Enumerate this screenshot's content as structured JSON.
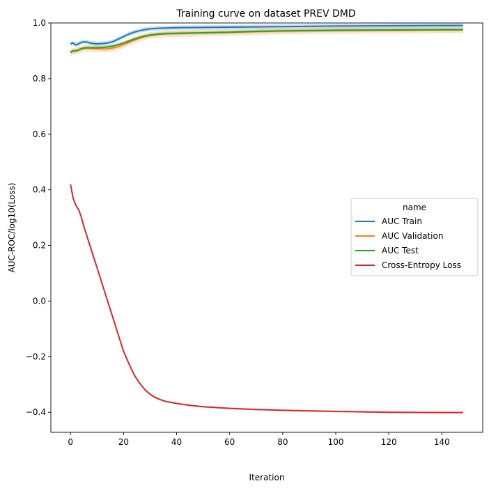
{
  "chart_data": {
    "type": "line",
    "title": "Training curve on dataset PREV DMD",
    "xlabel": "Iteration",
    "ylabel": "AUC-ROC/log10(Loss)",
    "xlim": [
      -7.4,
      155.4
    ],
    "ylim": [
      -0.472,
      1.0
    ],
    "xticks": [
      0,
      20,
      40,
      60,
      80,
      100,
      120,
      140
    ],
    "xtick_labels": [
      "0",
      "20",
      "40",
      "60",
      "80",
      "100",
      "120",
      "140"
    ],
    "yticks": [
      -0.4,
      -0.2,
      0.0,
      0.2,
      0.4,
      0.6,
      0.8,
      1.0
    ],
    "ytick_labels": [
      "−0.4",
      "−0.2",
      "0.0",
      "0.2",
      "0.4",
      "0.6",
      "0.8",
      "1.0"
    ],
    "grid": false,
    "legend": {
      "title": "name",
      "placement": "center-right",
      "entries": [
        "AUC Train",
        "AUC Validation",
        "AUC Test",
        "Cross-Entropy Loss"
      ]
    },
    "series": [
      {
        "name": "AUC Train",
        "color": "#1f77b4",
        "x": [
          0,
          1,
          2,
          3,
          4,
          5,
          6,
          7,
          8,
          10,
          12,
          14,
          16,
          18,
          20,
          22,
          24,
          26,
          28,
          30,
          33,
          36,
          40,
          50,
          60,
          80,
          100,
          120,
          140,
          148
        ],
        "y": [
          0.925,
          0.928,
          0.921,
          0.925,
          0.93,
          0.932,
          0.932,
          0.929,
          0.927,
          0.925,
          0.926,
          0.928,
          0.933,
          0.942,
          0.951,
          0.96,
          0.967,
          0.972,
          0.976,
          0.979,
          0.981,
          0.982,
          0.983,
          0.984,
          0.985,
          0.987,
          0.989,
          0.99,
          0.991,
          0.991
        ],
        "band": 0.008
      },
      {
        "name": "AUC Validation",
        "color": "#ff7f0e",
        "x": [
          0,
          1,
          2,
          3,
          4,
          5,
          6,
          8,
          10,
          12,
          14,
          16,
          18,
          20,
          22,
          24,
          26,
          28,
          30,
          33,
          36,
          40,
          50,
          60,
          70,
          80,
          100,
          120,
          140,
          148
        ],
        "y": [
          0.893,
          0.898,
          0.9,
          0.902,
          0.905,
          0.908,
          0.909,
          0.908,
          0.907,
          0.906,
          0.907,
          0.91,
          0.915,
          0.922,
          0.93,
          0.938,
          0.945,
          0.951,
          0.955,
          0.959,
          0.961,
          0.962,
          0.964,
          0.966,
          0.969,
          0.971,
          0.973,
          0.974,
          0.975,
          0.975
        ],
        "band": 0.012
      },
      {
        "name": "AUC Test",
        "color": "#2ca02c",
        "x": [
          0,
          1,
          2,
          3,
          4,
          5,
          6,
          8,
          10,
          12,
          14,
          16,
          18,
          20,
          22,
          24,
          26,
          28,
          30,
          33,
          36,
          40,
          50,
          60,
          70,
          80,
          100,
          120,
          140,
          148
        ],
        "y": [
          0.895,
          0.9,
          0.899,
          0.903,
          0.907,
          0.91,
          0.911,
          0.911,
          0.911,
          0.912,
          0.914,
          0.917,
          0.922,
          0.928,
          0.935,
          0.942,
          0.948,
          0.953,
          0.957,
          0.96,
          0.962,
          0.963,
          0.965,
          0.967,
          0.97,
          0.972,
          0.974,
          0.975,
          0.976,
          0.976
        ],
        "band": 0.006
      },
      {
        "name": "Cross-Entropy Loss",
        "color": "#d62728",
        "x": [
          0,
          1,
          2,
          3,
          4,
          5,
          6,
          8,
          10,
          12,
          14,
          16,
          18,
          20,
          22,
          24,
          26,
          28,
          30,
          32,
          34,
          36,
          40,
          45,
          50,
          60,
          70,
          80,
          100,
          120,
          140,
          148
        ],
        "y": [
          0.42,
          0.37,
          0.345,
          0.33,
          0.305,
          0.27,
          0.24,
          0.18,
          0.12,
          0.06,
          0.0,
          -0.06,
          -0.12,
          -0.18,
          -0.225,
          -0.265,
          -0.295,
          -0.318,
          -0.335,
          -0.347,
          -0.355,
          -0.361,
          -0.368,
          -0.375,
          -0.38,
          -0.386,
          -0.39,
          -0.393,
          -0.397,
          -0.4,
          -0.401,
          -0.401
        ],
        "band": 0.003
      }
    ]
  }
}
